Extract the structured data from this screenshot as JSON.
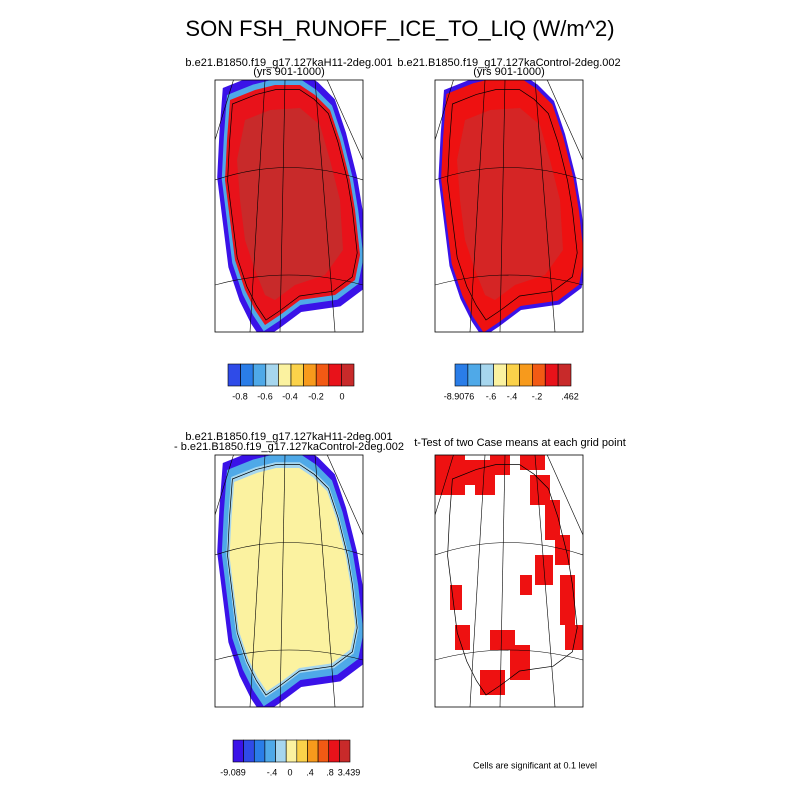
{
  "title": "SON FSH_RUNOFF_ICE_TO_LIQ (W/m^2)",
  "panels": [
    {
      "title": [
        "b.e21.B1850.f19_g17.127kaH11-2deg.001",
        "(yrs 901-1000)"
      ],
      "colorbar": {
        "labels": [
          "-0.8",
          "-0.6",
          "-0.4",
          "-0.2",
          "0"
        ]
      }
    },
    {
      "title": [
        "b.e21.B1850.f19_g17.127kaControl-2deg.002",
        "(yrs 901-1000)"
      ],
      "colorbar": {
        "labels": [
          "-8.9076",
          "-.6",
          "-.4",
          "-.2",
          ".462"
        ]
      }
    },
    {
      "title": [
        "b.e21.B1850.f19_g17.127kaH11-2deg.001",
        "- b.e21.B1850.f19_g17.127kaControl-2deg.002"
      ],
      "colorbar": {
        "labels": [
          "-9.089",
          "-.4",
          "0",
          ".4",
          ".8",
          "3.439"
        ]
      }
    },
    {
      "title": [
        "t-Test of two Case means at each grid point"
      ]
    }
  ],
  "note": "Cells are significant at 0.1 level"
}
